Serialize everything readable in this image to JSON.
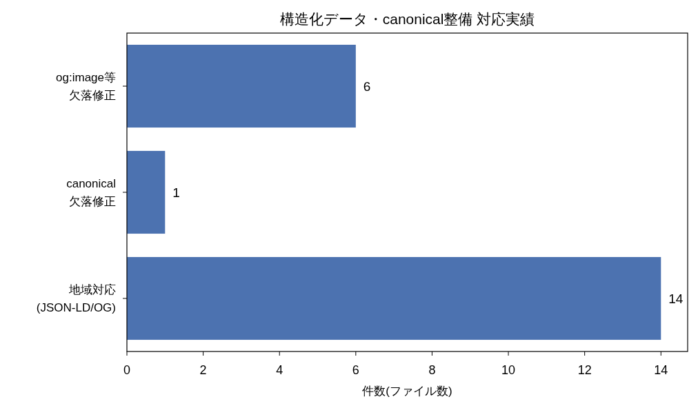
{
  "chart_data": {
    "type": "bar",
    "orientation": "horizontal",
    "title": "構造化データ・canonical整備 対応実績",
    "xlabel": "件数(ファイル数)",
    "categories": [
      "og:image等欠落修正",
      "canonical欠落修正",
      "地域対応(JSON-LD/OG)"
    ],
    "values": [
      6,
      1,
      14
    ],
    "color": "#4c72b0",
    "xlim": [
      0,
      14.7
    ],
    "xticks": [
      0,
      2,
      4,
      6,
      8,
      10,
      12,
      14
    ],
    "data_labels": true
  }
}
